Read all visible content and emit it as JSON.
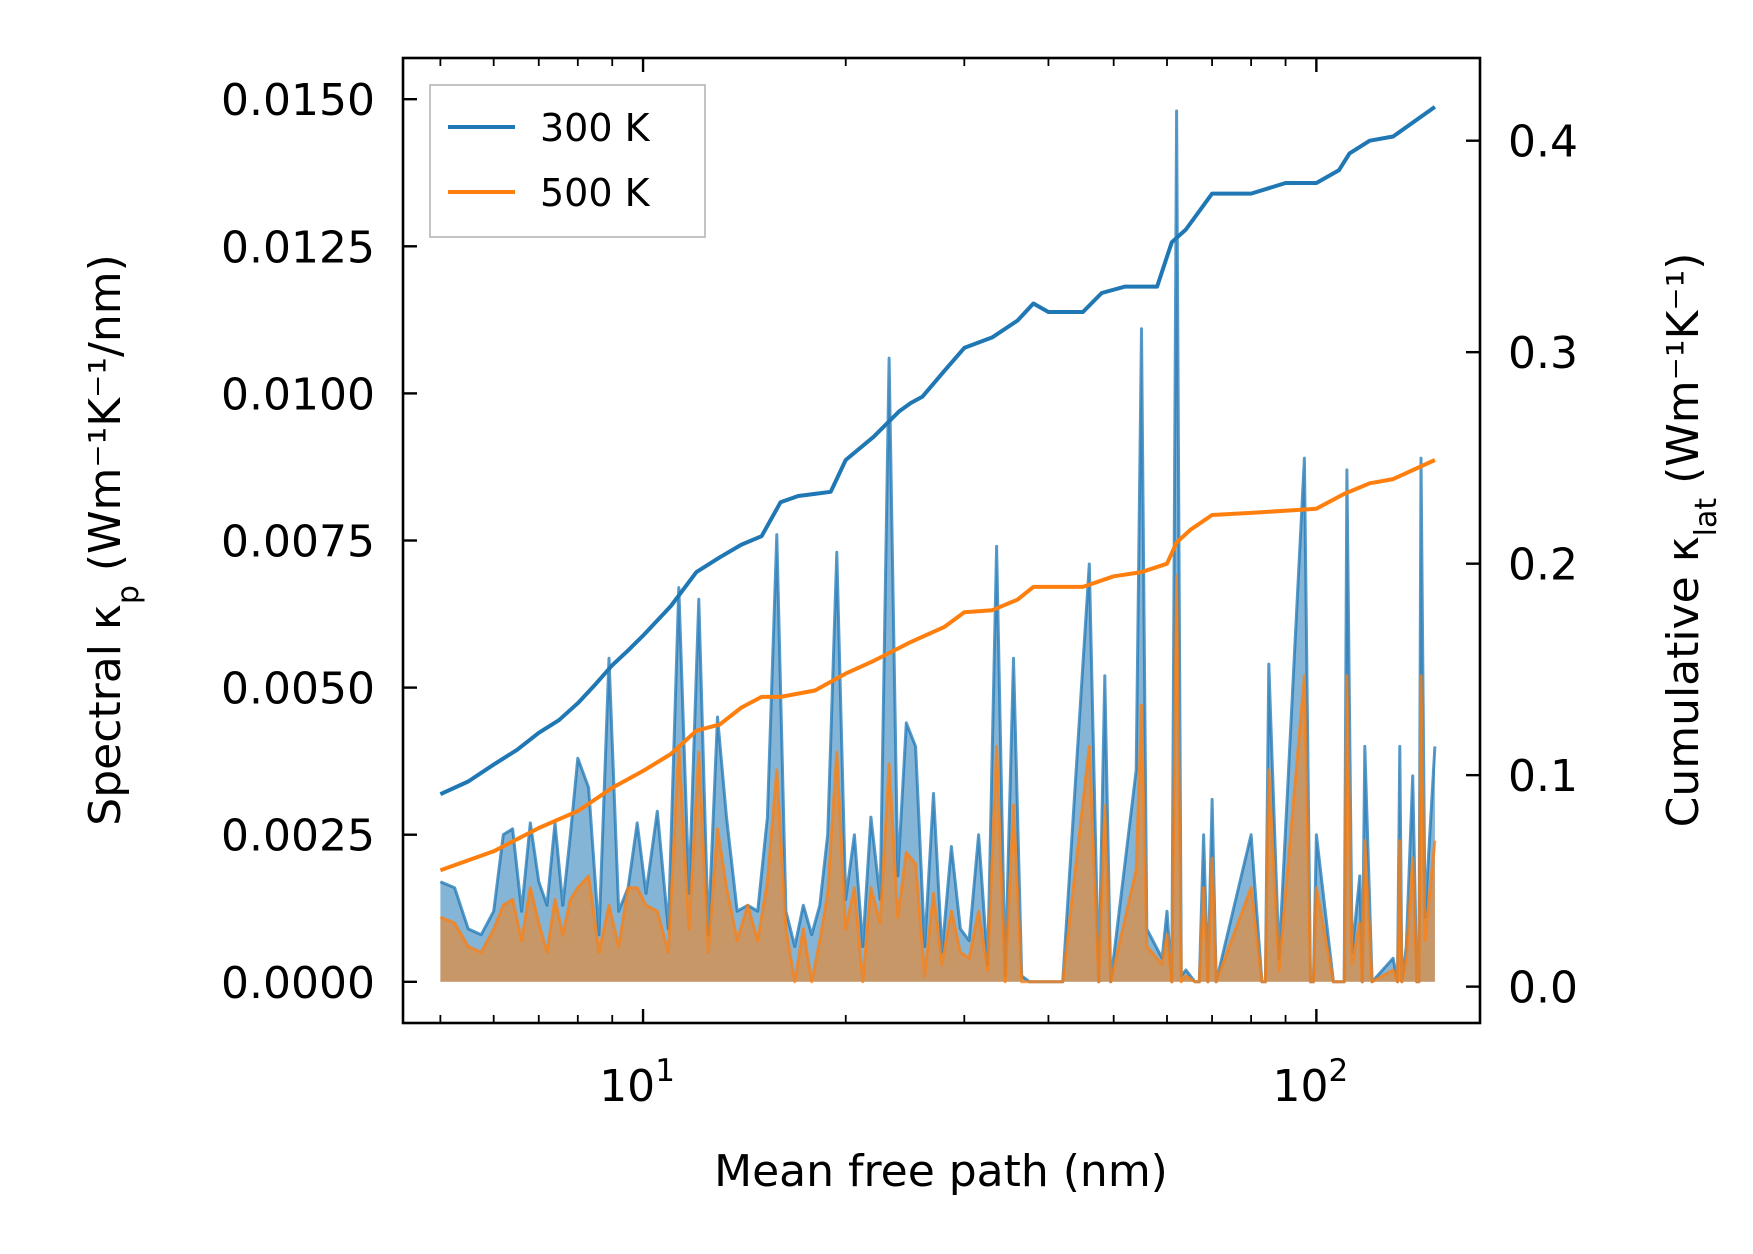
{
  "chart_data": {
    "type": "line",
    "xscale": "log",
    "xlabel": "Mean free path (nm)",
    "ylabel_left": "Spectral κ",
    "ylabel_left_sub": "p",
    "ylabel_left_unit": "(Wm⁻¹K⁻¹/nm)",
    "ylabel_right": "Cumulative κ",
    "ylabel_right_sub": "lat",
    "ylabel_right_unit": "(Wm⁻¹K⁻¹)",
    "xlim": [
      4.4,
      175
    ],
    "ylim_left": [
      -0.0007,
      0.0157
    ],
    "ylim_right": [
      -0.0172,
      0.4391
    ],
    "x_ticks": [
      {
        "value": 10,
        "label": "10",
        "exp": "1"
      },
      {
        "value": 100,
        "label": "10",
        "exp": "2"
      }
    ],
    "yticks_left": [
      {
        "value": 0.0,
        "label": "0.0000"
      },
      {
        "value": 0.0025,
        "label": "0.0025"
      },
      {
        "value": 0.005,
        "label": "0.0050"
      },
      {
        "value": 0.0075,
        "label": "0.0075"
      },
      {
        "value": 0.01,
        "label": "0.0100"
      },
      {
        "value": 0.0125,
        "label": "0.0125"
      },
      {
        "value": 0.015,
        "label": "0.0150"
      }
    ],
    "yticks_right": [
      {
        "value": 0.0,
        "label": "0.0"
      },
      {
        "value": 0.1,
        "label": "0.1"
      },
      {
        "value": 0.2,
        "label": "0.2"
      },
      {
        "value": 0.3,
        "label": "0.3"
      },
      {
        "value": 0.4,
        "label": "0.4"
      }
    ],
    "legend": {
      "placement": "top-left",
      "entries": [
        {
          "label": "300 K",
          "color": "#1f77b4"
        },
        {
          "label": "500 K",
          "color": "#ff7f0e"
        }
      ]
    },
    "cumulative": [
      {
        "name": "300 K",
        "color": "#1f77b4",
        "axis": "right",
        "x": [
          5,
          5.5,
          6,
          6.5,
          7,
          7.5,
          8,
          8.5,
          9,
          9.5,
          10,
          11,
          12,
          13,
          14,
          15,
          16,
          17,
          18,
          19,
          20,
          22,
          24,
          25,
          26,
          28,
          30,
          33,
          36,
          38,
          40,
          45,
          48,
          52,
          58,
          61,
          64,
          70,
          80,
          90,
          100,
          108,
          112,
          120,
          130,
          150
        ],
        "y": [
          0.091,
          0.097,
          0.105,
          0.112,
          0.12,
          0.126,
          0.134,
          0.143,
          0.152,
          0.159,
          0.166,
          0.18,
          0.196,
          0.203,
          0.209,
          0.213,
          0.229,
          0.232,
          0.233,
          0.234,
          0.249,
          0.26,
          0.272,
          0.276,
          0.279,
          0.291,
          0.302,
          0.307,
          0.315,
          0.323,
          0.319,
          0.319,
          0.328,
          0.331,
          0.331,
          0.352,
          0.358,
          0.375,
          0.375,
          0.38,
          0.38,
          0.386,
          0.394,
          0.4,
          0.402,
          0.416
        ]
      },
      {
        "name": "500 K",
        "color": "#ff7f0e",
        "axis": "right",
        "x": [
          5,
          6,
          7,
          8,
          9,
          10,
          11,
          12,
          13,
          14,
          15,
          16,
          18,
          20,
          22,
          25,
          28,
          30,
          33,
          36,
          38,
          45,
          50,
          55,
          60,
          62,
          65,
          70,
          80,
          100,
          110,
          120,
          130,
          150
        ],
        "y": [
          0.055,
          0.064,
          0.075,
          0.083,
          0.094,
          0.102,
          0.11,
          0.121,
          0.124,
          0.132,
          0.137,
          0.137,
          0.14,
          0.148,
          0.154,
          0.163,
          0.17,
          0.177,
          0.178,
          0.183,
          0.189,
          0.189,
          0.194,
          0.196,
          0.2,
          0.21,
          0.216,
          0.223,
          0.224,
          0.226,
          0.233,
          0.238,
          0.24,
          0.249
        ]
      }
    ],
    "spectral": [
      {
        "name": "300 K",
        "color": "#1f77b4",
        "axis": "left",
        "x": [
          5,
          5.25,
          5.5,
          5.75,
          6,
          6.2,
          6.4,
          6.6,
          6.8,
          7,
          7.2,
          7.4,
          7.6,
          7.8,
          8,
          8.3,
          8.6,
          8.9,
          9.2,
          9.5,
          9.8,
          10.1,
          10.5,
          10.9,
          11.3,
          11.7,
          12.1,
          12.5,
          12.9,
          13.3,
          13.8,
          14.3,
          14.8,
          15.3,
          15.8,
          16.3,
          16.8,
          17.3,
          17.8,
          18.3,
          18.8,
          19.4,
          20,
          20.6,
          21.2,
          21.8,
          22.5,
          23.2,
          23.9,
          24.6,
          25.4,
          26.2,
          27,
          27.8,
          28.7,
          29.6,
          30.5,
          31.5,
          32.5,
          33.5,
          34.5,
          35.5,
          36.5,
          37.5,
          38.5,
          39.5,
          42,
          46,
          47.5,
          48.5,
          49.5,
          54,
          55,
          56,
          59,
          60,
          61,
          62,
          63,
          64,
          66,
          67,
          68,
          69,
          70,
          71,
          80,
          83,
          84,
          85,
          88,
          96,
          98,
          99,
          100,
          106,
          108,
          110,
          111,
          113,
          116,
          117,
          118,
          121,
          130,
          132,
          133,
          134,
          136,
          139,
          141,
          142,
          143,
          145,
          150
        ],
        "y": [
          0.0017,
          0.0016,
          0.0009,
          0.0008,
          0.0012,
          0.0025,
          0.0026,
          0.0012,
          0.0027,
          0.0017,
          0.0013,
          0.0027,
          0.0013,
          0.0025,
          0.0038,
          0.0033,
          0.0008,
          0.0055,
          0.0012,
          0.0016,
          0.0027,
          0.0015,
          0.0029,
          0.0009,
          0.0067,
          0.0015,
          0.0065,
          0.0008,
          0.0045,
          0.0028,
          0.0012,
          0.0013,
          0.0012,
          0.0028,
          0.0076,
          0.0012,
          0.0006,
          0.0013,
          0.0008,
          0.0013,
          0.0025,
          0.0073,
          0.0014,
          0.0025,
          0.0006,
          0.0028,
          0.0014,
          0.0106,
          0.0018,
          0.0044,
          0.004,
          0.0006,
          0.0032,
          0.0005,
          0.0023,
          0.0009,
          0.0007,
          0.0025,
          0.0003,
          0.0074,
          0.0001,
          0.0055,
          0.0001,
          0,
          0,
          0,
          0,
          0.0071,
          0,
          0.0052,
          0,
          0.0036,
          0.0111,
          0.0009,
          0.0004,
          0.0012,
          0,
          0.0148,
          0.0001,
          0.0002,
          0,
          0,
          0.0025,
          0,
          0.0031,
          0,
          0.0025,
          0,
          0,
          0.0054,
          0.0004,
          0.0089,
          0,
          0,
          0.0025,
          0,
          0,
          0,
          0.0087,
          0.0005,
          0.0018,
          0,
          0.004,
          0,
          0.0004,
          0,
          0.004,
          0,
          0.0006,
          0.0035,
          0,
          0,
          0.0089,
          0.0011,
          0.004
        ]
      },
      {
        "name": "500 K",
        "color": "#ff7f0e",
        "axis": "left",
        "x": [
          5,
          5.25,
          5.5,
          5.75,
          6,
          6.2,
          6.4,
          6.6,
          6.8,
          7,
          7.2,
          7.4,
          7.6,
          7.8,
          8,
          8.3,
          8.6,
          8.9,
          9.2,
          9.5,
          9.8,
          10.1,
          10.5,
          10.9,
          11.3,
          11.7,
          12.1,
          12.5,
          12.9,
          13.3,
          13.8,
          14.3,
          14.8,
          15.3,
          15.8,
          16.3,
          16.8,
          17.3,
          17.8,
          18.3,
          18.8,
          19.4,
          20,
          20.6,
          21.2,
          21.8,
          22.5,
          23.2,
          23.9,
          24.6,
          25.4,
          26.2,
          27,
          27.8,
          28.7,
          29.6,
          30.5,
          31.5,
          32.5,
          33.5,
          34.5,
          35.5,
          36.5,
          37.5,
          38.5,
          39.5,
          42,
          46,
          47.5,
          48.5,
          49.5,
          54,
          55,
          56,
          59,
          60,
          61,
          62,
          63,
          64,
          66,
          67,
          68,
          69,
          70,
          71,
          80,
          83,
          84,
          85,
          88,
          96,
          98,
          99,
          100,
          106,
          108,
          110,
          111,
          113,
          116,
          117,
          118,
          121,
          130,
          132,
          133,
          134,
          136,
          139,
          141,
          142,
          143,
          145,
          150
        ],
        "y": [
          0.0011,
          0.001,
          0.0006,
          0.0005,
          0.0009,
          0.0013,
          0.0014,
          0.0007,
          0.0016,
          0.001,
          0.0005,
          0.0014,
          0.0008,
          0.0014,
          0.0016,
          0.0018,
          0.0005,
          0.0013,
          0.0006,
          0.0016,
          0.0016,
          0.0013,
          0.0012,
          0.0005,
          0.004,
          0.0009,
          0.0039,
          0.0005,
          0.0026,
          0.0016,
          0.0007,
          0.0013,
          0.0007,
          0.0017,
          0.0036,
          0.0009,
          0,
          0.0009,
          0,
          0.0007,
          0.0015,
          0.0039,
          0.0009,
          0.0016,
          0,
          0.0016,
          0.001,
          0.0037,
          0.0011,
          0.0022,
          0.002,
          0.0001,
          0.0015,
          0.0003,
          0.0012,
          0.0005,
          0.0004,
          0.0012,
          0.0002,
          0.004,
          0,
          0.003,
          0,
          0,
          0,
          0,
          0,
          0.004,
          0,
          0.003,
          0,
          0.0019,
          0.0047,
          0.0006,
          0.0003,
          0.0008,
          0,
          0.0069,
          0,
          0.0001,
          0,
          0,
          0.0016,
          0,
          0.0021,
          0,
          0.0016,
          0,
          0,
          0.0036,
          0.0002,
          0.0052,
          0,
          0,
          0.0016,
          0,
          0,
          0,
          0.0052,
          0.0003,
          0.001,
          0,
          0.0024,
          0,
          0.0002,
          0,
          0.0024,
          0,
          0.0004,
          0.0021,
          0,
          0,
          0.0052,
          0.0007,
          0.0024
        ]
      }
    ]
  }
}
